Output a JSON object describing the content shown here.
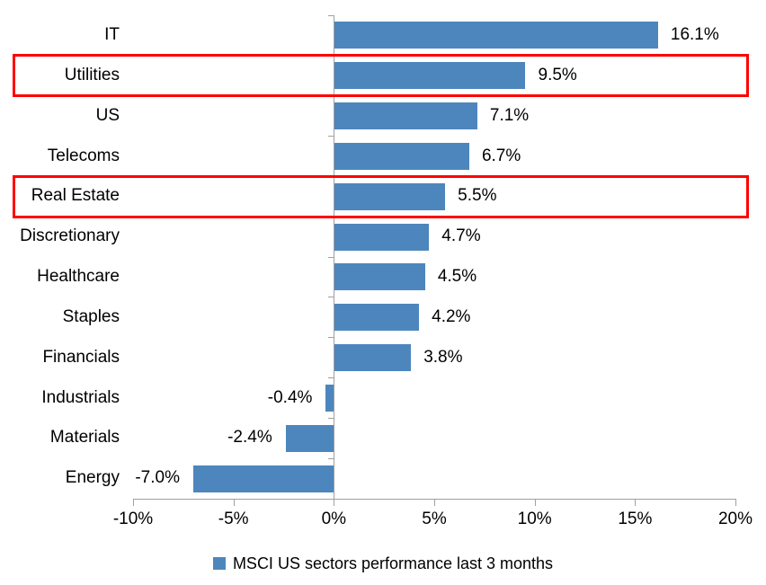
{
  "chart_data": {
    "type": "bar",
    "orientation": "horizontal",
    "title": "",
    "categories": [
      "IT",
      "Utilities",
      "US",
      "Telecoms",
      "Real Estate",
      "Discretionary",
      "Healthcare",
      "Staples",
      "Financials",
      "Industrials",
      "Materials",
      "Energy"
    ],
    "values": [
      16.1,
      9.5,
      7.1,
      6.7,
      5.5,
      4.7,
      4.5,
      4.2,
      3.8,
      -0.4,
      -2.4,
      -7.0
    ],
    "value_labels": [
      "16.1%",
      "9.5%",
      "7.1%",
      "6.7%",
      "5.5%",
      "4.7%",
      "4.5%",
      "4.2%",
      "3.8%",
      "-0.4%",
      "-2.4%",
      "-7.0%"
    ],
    "highlighted_categories": [
      "Utilities",
      "Real Estate"
    ],
    "xlim": [
      -10,
      20
    ],
    "x_tick_values": [
      -10,
      -5,
      0,
      5,
      10,
      15,
      20
    ],
    "x_ticks": [
      "-10%",
      "-5%",
      "0%",
      "5%",
      "10%",
      "15%",
      "20%"
    ],
    "grid": false,
    "legend": "MSCI US sectors performance last 3 months",
    "legend_position": "bottom-center",
    "colors": {
      "bar": "#4D86BD",
      "highlight_box": "#FF0000",
      "axis": "#A0A0A0",
      "text": "#000000",
      "background": "#FFFFFF"
    }
  }
}
